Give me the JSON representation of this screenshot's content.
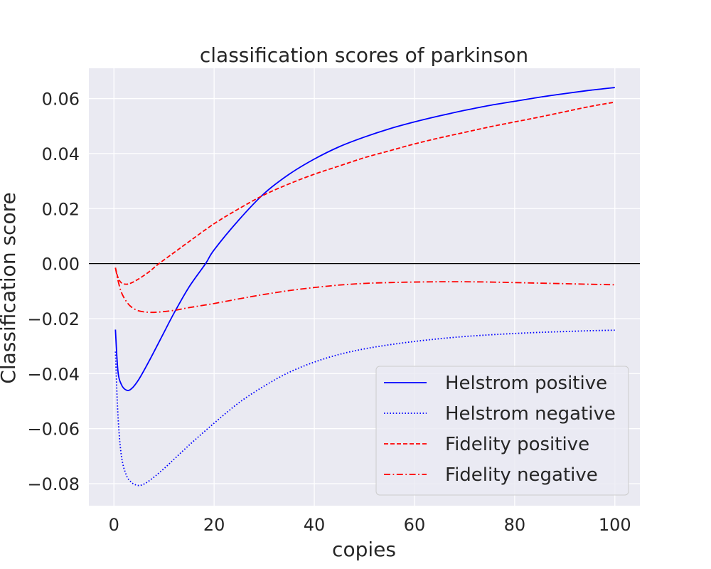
{
  "chart_data": {
    "type": "line",
    "title": "classification scores of parkinson",
    "xlabel": "copies",
    "ylabel": "Classification score",
    "xlim": [
      -5,
      105
    ],
    "ylim": [
      -0.088,
      0.071
    ],
    "xticks": [
      0,
      20,
      40,
      60,
      80,
      100
    ],
    "xtick_labels": [
      "0",
      "20",
      "40",
      "60",
      "80",
      "100"
    ],
    "yticks": [
      -0.08,
      -0.06,
      -0.04,
      -0.02,
      0.0,
      0.02,
      0.04,
      0.06
    ],
    "ytick_labels": [
      "−0.08",
      "−0.06",
      "−0.04",
      "−0.02",
      "0.00",
      "0.02",
      "0.04",
      "0.06"
    ],
    "grid": true,
    "legend_position": "lower right",
    "background": "#eaeaf2",
    "reference_line_y": 0.0,
    "series": [
      {
        "name": "Helstrom positive",
        "color": "#0000ff",
        "style": "solid",
        "x": [
          0.3,
          0.8,
          1.5,
          2.5,
          3.5,
          5,
          7,
          10,
          12,
          15,
          18.3,
          20,
          25,
          30,
          35,
          40,
          45,
          50,
          55,
          60,
          65,
          70,
          75,
          80,
          85,
          90,
          95,
          100
        ],
        "y": [
          -0.024,
          -0.039,
          -0.044,
          -0.046,
          -0.0455,
          -0.042,
          -0.0355,
          -0.025,
          -0.018,
          -0.0085,
          0.0,
          0.005,
          0.016,
          0.0255,
          0.0325,
          0.038,
          0.0425,
          0.046,
          0.049,
          0.0515,
          0.0537,
          0.0557,
          0.0575,
          0.059,
          0.0605,
          0.0618,
          0.063,
          0.064
        ]
      },
      {
        "name": "Helstrom negative",
        "color": "#0000ff",
        "style": "dotted",
        "x": [
          0.3,
          0.8,
          1.5,
          2.5,
          3.5,
          4.5,
          5.5,
          7,
          10,
          15,
          20,
          25,
          30,
          35,
          40,
          45,
          50,
          55,
          60,
          65,
          70,
          75,
          80,
          85,
          90,
          95,
          100
        ],
        "y": [
          -0.032,
          -0.055,
          -0.07,
          -0.077,
          -0.0795,
          -0.0805,
          -0.0805,
          -0.079,
          -0.0745,
          -0.066,
          -0.058,
          -0.0505,
          -0.0445,
          -0.0395,
          -0.0358,
          -0.033,
          -0.031,
          -0.0295,
          -0.0283,
          -0.0273,
          -0.0265,
          -0.0259,
          -0.0254,
          -0.025,
          -0.0247,
          -0.0244,
          -0.0242
        ]
      },
      {
        "name": "Fidelity positive",
        "color": "#ff0000",
        "style": "dashed",
        "x": [
          0.3,
          0.8,
          1.5,
          2.5,
          3.5,
          5,
          7,
          9,
          12,
          15,
          20,
          25,
          30,
          35,
          40,
          45,
          50,
          55,
          60,
          65,
          70,
          75,
          80,
          85,
          90,
          95,
          100
        ],
        "y": [
          -0.0015,
          -0.005,
          -0.007,
          -0.0075,
          -0.007,
          -0.0055,
          -0.003,
          0.0,
          0.004,
          0.008,
          0.0145,
          0.02,
          0.025,
          0.029,
          0.0325,
          0.0355,
          0.0385,
          0.041,
          0.0435,
          0.0457,
          0.0477,
          0.0497,
          0.0515,
          0.0533,
          0.0552,
          0.0571,
          0.0587
        ]
      },
      {
        "name": "Fidelity negative",
        "color": "#ff0000",
        "style": "dashdot",
        "x": [
          0.3,
          0.8,
          1.5,
          2.5,
          3.5,
          5,
          7,
          9,
          12,
          15,
          20,
          25,
          30,
          35,
          40,
          45,
          50,
          55,
          60,
          65,
          70,
          75,
          80,
          85,
          90,
          95,
          100
        ],
        "y": [
          -0.0015,
          -0.006,
          -0.0105,
          -0.0138,
          -0.0158,
          -0.0172,
          -0.0177,
          -0.0176,
          -0.017,
          -0.016,
          -0.0145,
          -0.0128,
          -0.0112,
          -0.0098,
          -0.0087,
          -0.0078,
          -0.0072,
          -0.0069,
          -0.0067,
          -0.0066,
          -0.0066,
          -0.0067,
          -0.0069,
          -0.0071,
          -0.0073,
          -0.0075,
          -0.0077
        ]
      }
    ]
  }
}
